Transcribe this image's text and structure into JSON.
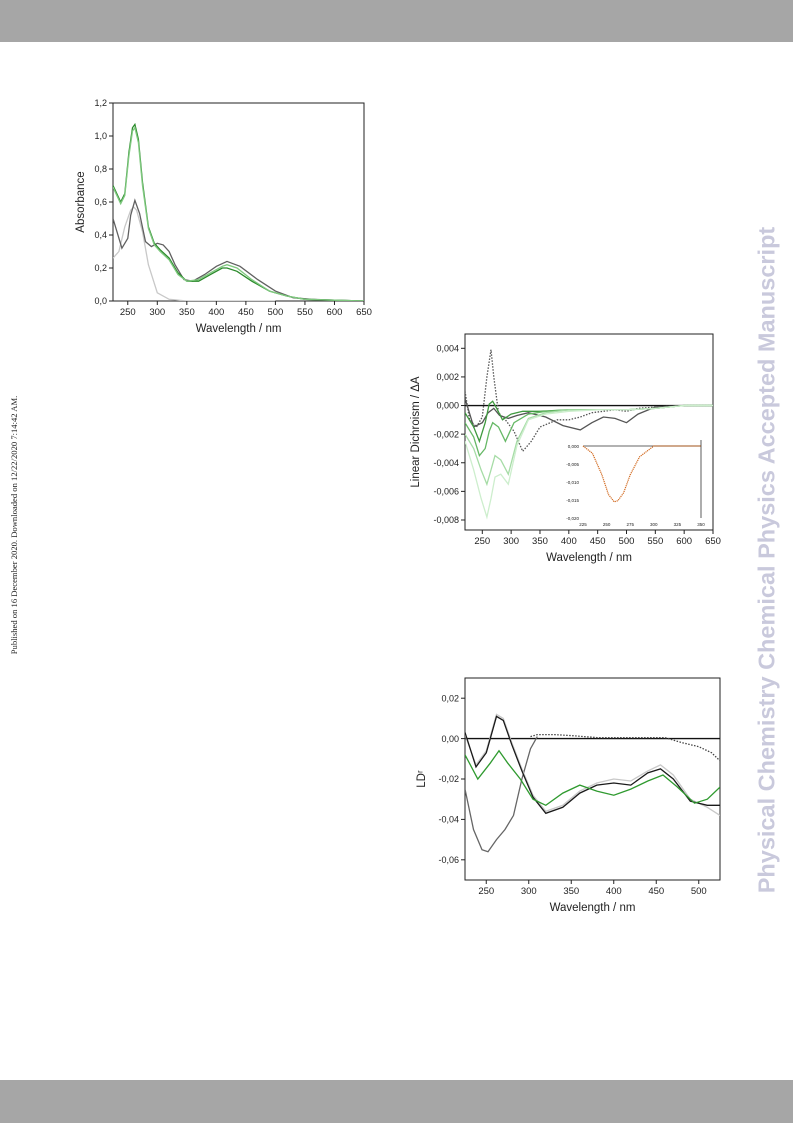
{
  "page": {
    "watermark": "Physical Chemistry Chemical Physics Accepted Manuscript",
    "published_note": "Published on 16 December 2020. Downloaded on 12/22/2020 7:14:42 AM."
  },
  "chart_data": [
    {
      "type": "line",
      "title": "",
      "xlabel": "Wavelength / nm",
      "ylabel": "Absorbance",
      "xlim": [
        225,
        650
      ],
      "ylim": [
        0,
        1.2
      ],
      "xticks": [
        250,
        300,
        350,
        400,
        450,
        500,
        550,
        600,
        650
      ],
      "yticks": [
        0,
        0.2,
        0.4,
        0.6,
        0.8,
        1.0,
        1.2
      ],
      "ytick_labels": [
        "0,0",
        "0,2",
        "0,4",
        "0,6",
        "0,8",
        "1,0",
        "1,2"
      ],
      "grid": false,
      "legend": "none",
      "series": [
        {
          "color": "#c8c8c8",
          "x": [
            225,
            235,
            245,
            255,
            260,
            265,
            275,
            285,
            300,
            320,
            350,
            400,
            450,
            500
          ],
          "y": [
            0.26,
            0.3,
            0.45,
            0.55,
            0.57,
            0.55,
            0.42,
            0.22,
            0.05,
            0.01,
            0,
            0,
            0,
            0
          ]
        },
        {
          "color": "#606060",
          "x": [
            225,
            240,
            250,
            255,
            262,
            270,
            280,
            290,
            300,
            310,
            320,
            330,
            345,
            360,
            380,
            400,
            418,
            440,
            470,
            500,
            530,
            560,
            600,
            650
          ],
          "y": [
            0.5,
            0.32,
            0.38,
            0.52,
            0.61,
            0.53,
            0.36,
            0.33,
            0.35,
            0.34,
            0.3,
            0.22,
            0.13,
            0.12,
            0.16,
            0.21,
            0.24,
            0.21,
            0.13,
            0.06,
            0.02,
            0.01,
            0.005,
            0
          ]
        },
        {
          "color": "#2b8a2b",
          "x": [
            225,
            238,
            245,
            252,
            258,
            262,
            268,
            275,
            285,
            295,
            305,
            320,
            335,
            350,
            370,
            390,
            410,
            418,
            435,
            460,
            490,
            520,
            550,
            600,
            650
          ],
          "y": [
            0.7,
            0.6,
            0.65,
            0.9,
            1.05,
            1.07,
            0.98,
            0.72,
            0.45,
            0.35,
            0.31,
            0.26,
            0.17,
            0.12,
            0.12,
            0.16,
            0.2,
            0.2,
            0.18,
            0.12,
            0.06,
            0.03,
            0.01,
            0.005,
            0
          ]
        },
        {
          "color": "#7fc87f",
          "x": [
            225,
            238,
            245,
            252,
            258,
            262,
            268,
            275,
            285,
            295,
            305,
            320,
            335,
            350,
            370,
            390,
            410,
            418,
            435,
            460,
            490,
            520,
            550,
            600,
            650
          ],
          "y": [
            0.69,
            0.59,
            0.64,
            0.88,
            1.03,
            1.05,
            0.96,
            0.7,
            0.44,
            0.34,
            0.3,
            0.25,
            0.16,
            0.12,
            0.13,
            0.17,
            0.21,
            0.22,
            0.2,
            0.13,
            0.06,
            0.03,
            0.01,
            0.005,
            0
          ]
        }
      ]
    },
    {
      "type": "line",
      "title": "",
      "xlabel": "Wavelength / nm",
      "ylabel": "Linear Dichroism / ΔA",
      "xlim": [
        220,
        650
      ],
      "ylim": [
        -0.0087,
        0.005
      ],
      "xticks": [
        250,
        300,
        350,
        400,
        450,
        500,
        550,
        600,
        650
      ],
      "yticks": [
        -0.008,
        -0.006,
        -0.004,
        -0.002,
        0,
        0.002,
        0.004
      ],
      "ytick_labels": [
        "-0,008",
        "-0,006",
        "-0,004",
        "-0,002",
        "0,000",
        "0,002",
        "0,004"
      ],
      "grid": false,
      "legend": "none",
      "zero_line": true,
      "series": [
        {
          "color": "#555555",
          "dash": true,
          "x": [
            220,
            228,
            240,
            250,
            258,
            265,
            270,
            278,
            290,
            305,
            320,
            335,
            350,
            380,
            400,
            420,
            440,
            460,
            480,
            500,
            520,
            550,
            600,
            650
          ],
          "y": [
            0.001,
            -0.001,
            -0.0015,
            -0.0008,
            0.002,
            0.0039,
            0.002,
            -0.0005,
            -0.001,
            -0.0018,
            -0.0032,
            -0.0025,
            -0.0015,
            -0.001,
            -0.001,
            -0.0008,
            -0.0005,
            -0.0004,
            -0.0003,
            -0.0004,
            -0.0002,
            -0.0001,
            0,
            0
          ]
        },
        {
          "color": "#555555",
          "x": [
            220,
            235,
            250,
            260,
            270,
            280,
            295,
            310,
            330,
            360,
            390,
            420,
            440,
            460,
            480,
            500,
            520,
            550,
            600,
            650
          ],
          "y": [
            0.0005,
            -0.0015,
            -0.0012,
            -0.0005,
            -0.0002,
            -0.0007,
            -0.0009,
            -0.0007,
            -0.0005,
            -0.0008,
            -0.0014,
            -0.0017,
            -0.0012,
            -0.0008,
            -0.0009,
            -0.0012,
            -0.0006,
            -0.0001,
            0,
            0
          ]
        },
        {
          "color": "#3f9a3f",
          "x": [
            220,
            235,
            245,
            255,
            262,
            268,
            275,
            285,
            300,
            320,
            350,
            400,
            450,
            500,
            550,
            600,
            650
          ],
          "y": [
            -0.0005,
            -0.0015,
            -0.0025,
            -0.0012,
            0.0001,
            0.0003,
            -0.0002,
            -0.001,
            -0.0006,
            -0.0004,
            -0.0004,
            -0.0003,
            -0.0003,
            -0.0003,
            -0.0002,
            0,
            0
          ]
        },
        {
          "color": "#66b866",
          "x": [
            220,
            235,
            245,
            255,
            262,
            268,
            278,
            290,
            305,
            330,
            360,
            400,
            450,
            500,
            550,
            600,
            650
          ],
          "y": [
            -0.0012,
            -0.0022,
            -0.0035,
            -0.003,
            -0.0018,
            -0.0012,
            -0.0015,
            -0.0025,
            -0.0012,
            -0.0006,
            -0.0004,
            -0.0003,
            -0.0003,
            -0.0003,
            -0.0002,
            0,
            0
          ]
        },
        {
          "color": "#a6dca6",
          "x": [
            220,
            235,
            248,
            258,
            265,
            272,
            282,
            295,
            310,
            330,
            360,
            400,
            450,
            500,
            550,
            600,
            650
          ],
          "y": [
            -0.002,
            -0.003,
            -0.0045,
            -0.0055,
            -0.0045,
            -0.0035,
            -0.0038,
            -0.0048,
            -0.0025,
            -0.0009,
            -0.0005,
            -0.0003,
            -0.0003,
            -0.0003,
            -0.0002,
            0,
            0
          ]
        },
        {
          "color": "#cdeecd",
          "x": [
            220,
            235,
            248,
            258,
            265,
            272,
            282,
            295,
            310,
            330,
            360,
            400,
            450,
            500,
            550,
            600,
            650
          ],
          "y": [
            -0.0025,
            -0.0045,
            -0.0065,
            -0.0078,
            -0.0065,
            -0.005,
            -0.0048,
            -0.0055,
            -0.0028,
            -0.001,
            -0.0006,
            -0.0004,
            -0.0003,
            -0.0003,
            -0.0002,
            0,
            0
          ]
        }
      ],
      "inset": {
        "type": "line",
        "color": "#d2691e",
        "xticks": [
          225,
          250,
          275,
          300,
          325,
          350
        ],
        "ytick_labels": [
          "0,000",
          "-0,005",
          "-0,010",
          "-0,015",
          "-0,020"
        ],
        "x": [
          225,
          235,
          245,
          252,
          258,
          262,
          268,
          275,
          285,
          300,
          350
        ],
        "y": [
          0,
          -0.002,
          -0.008,
          -0.0135,
          -0.0155,
          -0.0152,
          -0.013,
          -0.008,
          -0.003,
          0,
          0
        ]
      }
    },
    {
      "type": "line",
      "title": "",
      "xlabel": "Wavelength / nm",
      "ylabel": "LDʳ",
      "xlim": [
        225,
        525
      ],
      "ylim": [
        -0.07,
        0.03
      ],
      "xticks": [
        250,
        300,
        350,
        400,
        450,
        500
      ],
      "yticks": [
        -0.06,
        -0.04,
        -0.02,
        0,
        0.02
      ],
      "ytick_labels": [
        "-0,06",
        "-0,04",
        "-0,02",
        "0,00",
        "0,02"
      ],
      "grid": false,
      "legend": "none",
      "zero_line": true,
      "series": [
        {
          "color": "#666666",
          "x": [
            225,
            235,
            245,
            252,
            262,
            272,
            282,
            292,
            302,
            310
          ],
          "y": [
            -0.025,
            -0.045,
            -0.055,
            -0.056,
            -0.05,
            -0.045,
            -0.038,
            -0.02,
            -0.005,
            0.001
          ]
        },
        {
          "color": "#444444",
          "dash": true,
          "x": [
            302,
            310,
            330,
            350,
            380,
            400,
            430,
            460,
            480,
            500,
            515,
            525
          ],
          "y": [
            0.001,
            0.002,
            0.002,
            0.0015,
            0.0005,
            0.0005,
            0.0005,
            0.0005,
            -0.002,
            -0.004,
            -0.007,
            -0.011
          ]
        },
        {
          "color": "#c8c8c8",
          "x": [
            225,
            238,
            250,
            262,
            270,
            280,
            292,
            305,
            320,
            340,
            360,
            380,
            400,
            420,
            440,
            455,
            470,
            490,
            510,
            525
          ],
          "y": [
            0.002,
            -0.013,
            -0.006,
            0.012,
            0.01,
            -0.002,
            -0.015,
            -0.028,
            -0.036,
            -0.033,
            -0.026,
            -0.022,
            -0.02,
            -0.021,
            -0.016,
            -0.013,
            -0.018,
            -0.03,
            -0.034,
            -0.038
          ]
        },
        {
          "color": "#1a1a1a",
          "x": [
            225,
            238,
            250,
            262,
            270,
            280,
            292,
            305,
            320,
            340,
            360,
            380,
            400,
            420,
            440,
            455,
            470,
            490,
            510,
            525
          ],
          "y": [
            0.003,
            -0.014,
            -0.007,
            0.011,
            0.009,
            -0.003,
            -0.016,
            -0.029,
            -0.037,
            -0.034,
            -0.027,
            -0.023,
            -0.022,
            -0.023,
            -0.017,
            -0.015,
            -0.02,
            -0.031,
            -0.033,
            -0.033
          ]
        },
        {
          "color": "#2f9a2f",
          "x": [
            225,
            240,
            255,
            265,
            275,
            290,
            305,
            320,
            340,
            360,
            380,
            400,
            420,
            440,
            458,
            475,
            495,
            510,
            525
          ],
          "y": [
            -0.008,
            -0.02,
            -0.012,
            -0.006,
            -0.012,
            -0.02,
            -0.03,
            -0.033,
            -0.027,
            -0.023,
            -0.026,
            -0.028,
            -0.025,
            -0.021,
            -0.018,
            -0.024,
            -0.032,
            -0.03,
            -0.024
          ]
        }
      ]
    }
  ]
}
